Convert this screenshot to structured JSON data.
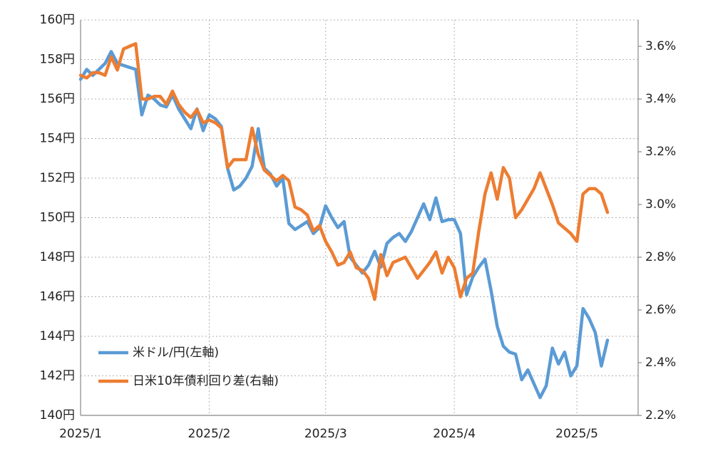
{
  "chart_data": {
    "type": "line",
    "categories": [
      "2025/1",
      null,
      null,
      null,
      null,
      null,
      null,
      null,
      null,
      null,
      null,
      null,
      null,
      null,
      null,
      null,
      null,
      null,
      null,
      null,
      null,
      "2025/2",
      null,
      null,
      null,
      null,
      null,
      null,
      null,
      null,
      null,
      null,
      null,
      null,
      null,
      null,
      null,
      null,
      null,
      null,
      "2025/3",
      null,
      null,
      null,
      null,
      null,
      null,
      null,
      null,
      null,
      null,
      null,
      null,
      null,
      null,
      null,
      null,
      null,
      null,
      null,
      null,
      "2025/4",
      null,
      null,
      null,
      null,
      null,
      null,
      null,
      null,
      null,
      null,
      null,
      null,
      null,
      null,
      null,
      null,
      null,
      null,
      null,
      "2025/5",
      null,
      null,
      null,
      null,
      null
    ],
    "series": [
      {
        "name": "米ドル/円(左軸)",
        "color": "#5b9bd5",
        "axis": "y",
        "values": [
          157.0,
          157.5,
          157.2,
          157.5,
          157.8,
          158.4,
          157.8,
          157.7,
          157.6,
          157.5,
          155.2,
          156.2,
          156.0,
          155.7,
          155.6,
          156.2,
          155.5,
          155.0,
          154.5,
          155.5,
          154.4,
          155.2,
          155.0,
          154.6,
          152.5,
          151.4,
          151.6,
          152.0,
          152.6,
          154.5,
          152.5,
          152.2,
          151.6,
          152.0,
          149.7,
          149.4,
          149.6,
          149.8,
          149.2,
          149.5,
          150.6,
          150.0,
          149.5,
          149.8,
          148.0,
          147.6,
          147.2,
          147.6,
          148.3,
          147.5,
          148.7,
          149.0,
          149.2,
          148.8,
          149.3,
          150.0,
          150.7,
          149.9,
          151.0,
          149.8,
          149.9,
          149.9,
          149.2,
          146.1,
          147.0,
          147.5,
          147.9,
          146.3,
          144.5,
          143.5,
          143.2,
          143.1,
          141.8,
          142.3,
          141.6,
          140.9,
          141.5,
          143.4,
          142.6,
          143.2,
          142.0,
          142.5,
          145.4,
          144.9,
          144.2,
          142.5,
          143.8
        ]
      },
      {
        "name": "日米10年債利回り差(右軸)",
        "color": "#ed7d31",
        "axis": "y2",
        "values": [
          3.49,
          3.48,
          3.5,
          3.5,
          3.49,
          3.56,
          3.51,
          3.59,
          3.6,
          3.61,
          3.4,
          3.4,
          3.41,
          3.41,
          3.38,
          3.43,
          3.38,
          3.35,
          3.33,
          3.36,
          3.31,
          3.32,
          3.31,
          3.29,
          3.14,
          3.17,
          3.17,
          3.17,
          3.29,
          3.19,
          3.13,
          3.11,
          3.09,
          3.11,
          3.09,
          2.99,
          2.98,
          2.96,
          2.9,
          2.92,
          2.86,
          2.82,
          2.77,
          2.78,
          2.82,
          2.76,
          2.75,
          2.72,
          2.64,
          2.81,
          2.73,
          2.78,
          2.79,
          2.8,
          2.76,
          2.72,
          2.75,
          2.78,
          2.82,
          2.74,
          2.8,
          2.76,
          2.65,
          2.72,
          2.74,
          2.9,
          3.04,
          3.12,
          3.02,
          3.14,
          3.1,
          2.95,
          2.98,
          3.02,
          3.06,
          3.12,
          3.06,
          3.0,
          2.93,
          2.91,
          2.89,
          2.86,
          3.04,
          3.06,
          3.06,
          3.04,
          2.97
        ]
      }
    ],
    "ylim": [
      140,
      160
    ],
    "yticks": [
      {
        "value": 140,
        "label": "140円"
      },
      {
        "value": 142,
        "label": "142円"
      },
      {
        "value": 144,
        "label": "144円"
      },
      {
        "value": 146,
        "label": "146円"
      },
      {
        "value": 148,
        "label": "148円"
      },
      {
        "value": 150,
        "label": "150円"
      },
      {
        "value": 152,
        "label": "152円"
      },
      {
        "value": 154,
        "label": "154円"
      },
      {
        "value": 156,
        "label": "156円"
      },
      {
        "value": 158,
        "label": "158円"
      },
      {
        "value": 160,
        "label": "160円"
      }
    ],
    "y2lim": [
      2.2,
      3.7
    ],
    "y2ticks": [
      {
        "value": 2.2,
        "label": "2.2%"
      },
      {
        "value": 2.4,
        "label": "2.4%"
      },
      {
        "value": 2.6,
        "label": "2.6%"
      },
      {
        "value": 2.8,
        "label": "2.8%"
      },
      {
        "value": 3.0,
        "label": "3.0%"
      },
      {
        "value": 3.2,
        "label": "3.2%"
      },
      {
        "value": 3.4,
        "label": "3.4%"
      },
      {
        "value": 3.6,
        "label": "3.6%"
      }
    ],
    "grid": true,
    "legend": "lower-left"
  }
}
